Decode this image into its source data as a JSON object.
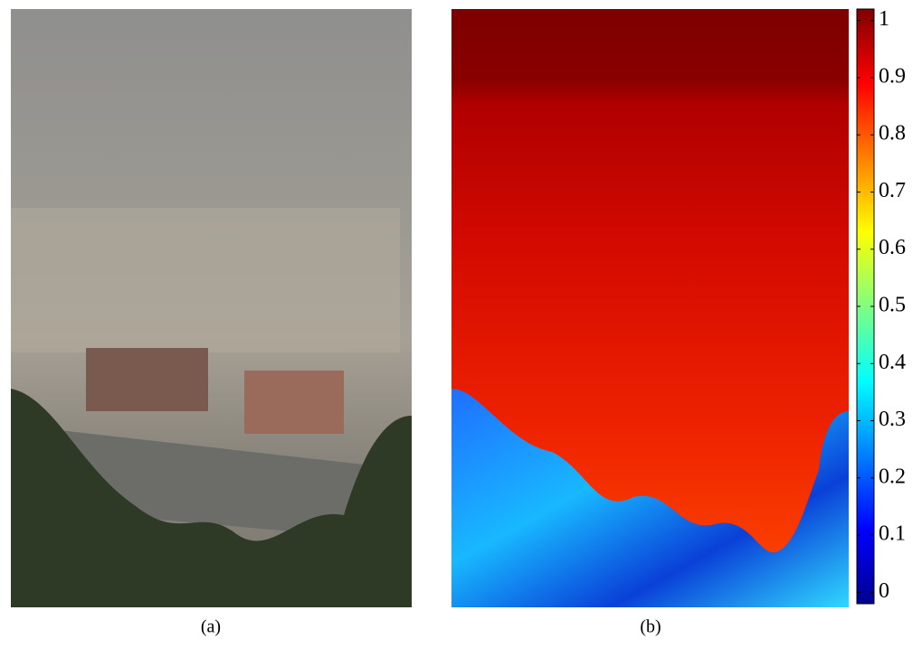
{
  "figure": {
    "panels": [
      {
        "caption": "(a)"
      },
      {
        "caption": "(b)"
      }
    ],
    "colorbar": {
      "clim": [
        -0.02,
        1.02
      ],
      "ticks": [
        0,
        0.1,
        0.2,
        0.3,
        0.4,
        0.5,
        0.6,
        0.7,
        0.8,
        0.9,
        1
      ]
    }
  }
}
